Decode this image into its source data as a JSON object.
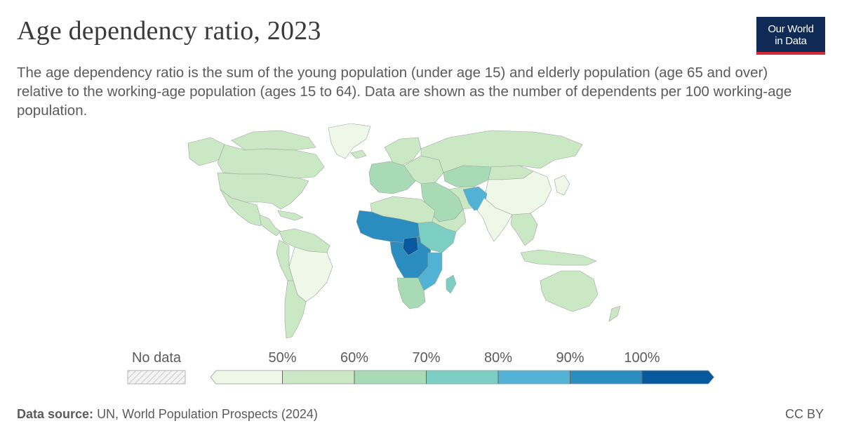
{
  "header": {
    "title": "Age dependency ratio, 2023",
    "subtitle": "The age dependency ratio is the sum of the young population (under age 15) and elderly population (age 65 and over) relative to the working-age population (ages 15 to 64). Data are shown as the number of dependents per 100 working-age population.",
    "logo_line1": "Our World",
    "logo_line2": "in Data"
  },
  "legend": {
    "no_data_label": "No data",
    "tick_labels": [
      "50%",
      "60%",
      "70%",
      "80%",
      "90%",
      "100%"
    ],
    "colors": [
      "#eef7e8",
      "#cbe8c4",
      "#a8dbb5",
      "#7ccdc2",
      "#52b2d5",
      "#2b8cc0",
      "#08589e"
    ]
  },
  "footer": {
    "source_label": "Data source:",
    "source_text": "UN, World Population Prospects (2024)",
    "license": "CC BY"
  }
}
